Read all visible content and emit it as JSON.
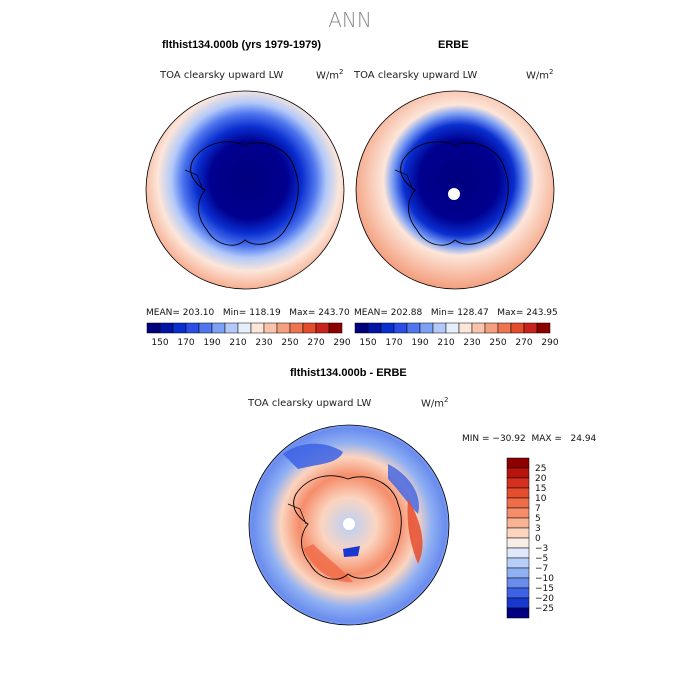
{
  "figure_title": "ANN",
  "panels": [
    {
      "title": "flthist134.000b (yrs 1979-1979)",
      "variable": "TOA clearsky upward LW",
      "units_base": "W/m",
      "units_exp": "2",
      "stats": {
        "mean": "203.10",
        "min": "118.19",
        "max": "243.70"
      },
      "stats_line": "MEAN= 203.10   Min= 118.19   Max= 243.70"
    },
    {
      "title": "ERBE",
      "variable": "TOA clearsky upward LW",
      "units_base": "W/m",
      "units_exp": "2",
      "stats": {
        "mean": "202.88",
        "min": "128.47",
        "max": "243.95"
      },
      "stats_line": "MEAN= 202.88   Min= 128.47   Max= 243.95"
    },
    {
      "title": "flthist134.000b - ERBE",
      "variable": "TOA clearsky upward LW",
      "units_base": "W/m",
      "units_exp": "2",
      "stats": {
        "min": "−30.92",
        "max": "24.94"
      },
      "stats_line": "MIN = −30.92  MAX =   24.94"
    }
  ],
  "abs_colorbar": {
    "levels": [
      150,
      160,
      170,
      180,
      190,
      200,
      210,
      220,
      230,
      240,
      250,
      260,
      270,
      280,
      290
    ],
    "tick_labels": [
      "150",
      "170",
      "190",
      "210",
      "230",
      "250",
      "270",
      "290"
    ],
    "colors": [
      "#00007f",
      "#0015a6",
      "#0a2fd0",
      "#2a4ee6",
      "#4f76ee",
      "#7da0f4",
      "#b2c9f9",
      "#e6eefc",
      "#fce6da",
      "#fac4aa",
      "#f69f80",
      "#f07450",
      "#e44b2c",
      "#c8221a",
      "#8c0000"
    ]
  },
  "diff_colorbar": {
    "labels": [
      "25",
      "20",
      "15",
      "10",
      "7",
      "5",
      "3",
      "0",
      "−3",
      "−5",
      "−7",
      "−10",
      "−15",
      "−20",
      "−25"
    ],
    "colors": [
      "#8c0000",
      "#b8140e",
      "#d6301f",
      "#e64d2e",
      "#f06d4a",
      "#f58d6a",
      "#f9b394",
      "#fbd5c0",
      "#f8eee8",
      "#dfe9fb",
      "#b7cff8",
      "#8fb0f3",
      "#6a8cee",
      "#3d62e4",
      "#1a38cf",
      "#000080"
    ]
  }
}
